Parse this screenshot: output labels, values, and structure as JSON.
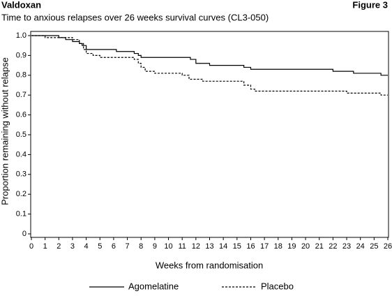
{
  "chart_data": {
    "type": "step-line",
    "header": "Valdoxan",
    "figure": "Figure 3",
    "title": "Time to anxious relapses over 26 weeks survival curves (CL3-050)",
    "xlabel": "Weeks from randomisation",
    "ylabel": "Proportion remaining without relapse",
    "xlim": [
      0,
      26
    ],
    "ylim": [
      0,
      1
    ],
    "xticks": [
      0,
      1,
      2,
      3,
      4,
      5,
      6,
      7,
      8,
      9,
      10,
      11,
      12,
      13,
      14,
      15,
      16,
      17,
      18,
      19,
      20,
      21,
      22,
      23,
      24,
      25,
      26
    ],
    "yticks": [
      0,
      0.1,
      0.2,
      0.3,
      0.4,
      0.5,
      0.6,
      0.7,
      0.8,
      0.9,
      {
        "value": 1,
        "label": "1.0"
      }
    ],
    "series": [
      {
        "name": "Agomelatine",
        "color": "#000000",
        "dash": "solid",
        "x": [
          0,
          2,
          2.5,
          3,
          3.5,
          3.7,
          4,
          6.2,
          7.5,
          7.8,
          8,
          11.6,
          12,
          13,
          15.5,
          16,
          22,
          23.5,
          25.5,
          26
        ],
        "values": [
          1.0,
          0.99,
          0.98,
          0.97,
          0.96,
          0.95,
          0.93,
          0.92,
          0.91,
          0.9,
          0.89,
          0.88,
          0.86,
          0.85,
          0.84,
          0.83,
          0.82,
          0.81,
          0.8,
          0.8
        ]
      },
      {
        "name": "Placebo",
        "color": "#000000",
        "dash": "dashed",
        "x": [
          0,
          1,
          3,
          3.5,
          3.8,
          4,
          4.5,
          5,
          7.5,
          7.8,
          8,
          8.3,
          9,
          11,
          11.5,
          12.5,
          15.5,
          16,
          16.3,
          23,
          25.5,
          26
        ],
        "values": [
          1.0,
          0.99,
          0.98,
          0.96,
          0.93,
          0.91,
          0.9,
          0.89,
          0.88,
          0.86,
          0.84,
          0.82,
          0.81,
          0.8,
          0.78,
          0.77,
          0.75,
          0.73,
          0.72,
          0.71,
          0.7,
          0.7
        ]
      }
    ]
  }
}
